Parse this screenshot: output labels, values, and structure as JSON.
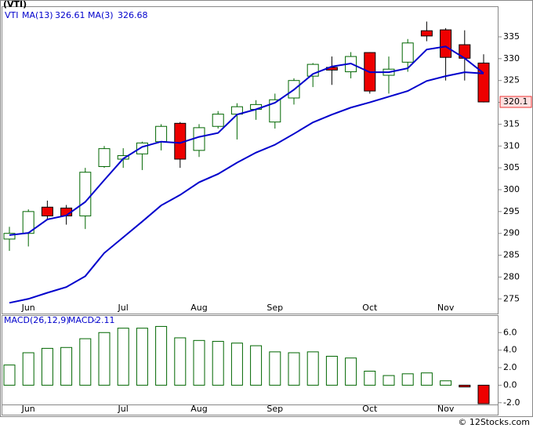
{
  "chart_data": [
    {
      "type": "candlestick",
      "title": "(VTI)",
      "name": "VTI",
      "categories": [
        null,
        "Jun",
        null,
        null,
        null,
        null,
        "Jul",
        null,
        null,
        null,
        "Aug",
        null,
        null,
        null,
        "Sep",
        null,
        null,
        null,
        null,
        "Oct",
        null,
        null,
        null,
        "Nov",
        null,
        null
      ],
      "open": [
        288.7,
        290,
        296,
        295.8,
        294,
        305.3,
        307,
        308.2,
        311,
        315.2,
        309,
        314.5,
        317.3,
        318.4,
        315.5,
        321,
        326,
        328,
        327,
        331.4,
        326.2,
        329.2,
        336.4,
        336.6,
        333.2,
        329
      ],
      "high": [
        291.5,
        295.5,
        297.5,
        296.5,
        305,
        310,
        309.5,
        311,
        315,
        315.5,
        315,
        318,
        319.8,
        320.5,
        322,
        325.5,
        329,
        330.5,
        331.5,
        331.5,
        330.5,
        334.5,
        338.5,
        337,
        336.5,
        331
      ],
      "low": [
        286,
        287,
        293,
        292,
        291,
        305,
        305,
        304.5,
        309,
        305,
        307.5,
        314,
        311.5,
        316,
        314,
        319.5,
        323.5,
        324,
        325.5,
        322,
        322,
        327,
        334,
        325,
        325,
        320
      ],
      "close": [
        290,
        295,
        294,
        294,
        304,
        309.4,
        307.8,
        310.7,
        314.5,
        307,
        314.2,
        317.3,
        319,
        319.5,
        320.6,
        325,
        328.7,
        327.4,
        330.5,
        322.6,
        327.6,
        333.6,
        335.2,
        330.3,
        330.1,
        320.1
      ],
      "up_color": "#006600",
      "down_color": "#ee0000",
      "series": [
        {
          "name": "MA(13)",
          "color": "#0000cc",
          "values": [
            274.1,
            275,
            276.4,
            277.7,
            280.2,
            285.5,
            289.1,
            292.7,
            296.4,
            298.8,
            301.7,
            303.6,
            306.2,
            308.5,
            310.3,
            312.8,
            315.4,
            317.2,
            318.8,
            320,
            321.3,
            322.6,
            324.9,
            326,
            326.9,
            326.61
          ]
        },
        {
          "name": "MA(3)",
          "color": "#0000cc",
          "values": [
            289.6,
            290.1,
            293.2,
            294.1,
            297.2,
            302.2,
            307.1,
            309.8,
            311,
            310.7,
            312.1,
            313,
            317.2,
            318.4,
            319.9,
            322.9,
            326.5,
            328.2,
            328.9,
            326.9,
            326.9,
            327.8,
            332.1,
            332.8,
            330.1,
            326.68
          ]
        }
      ],
      "ylim": [
        272,
        342
      ],
      "yticks": [
        275,
        280,
        285,
        290,
        295,
        300,
        305,
        310,
        315,
        320,
        325,
        330,
        335
      ]
    },
    {
      "type": "bar",
      "title": "MACD(26,12,9)",
      "legend_label": "MACD:",
      "categories": [
        null,
        "Jun",
        null,
        null,
        null,
        null,
        "Jul",
        null,
        null,
        null,
        "Aug",
        null,
        null,
        null,
        "Sep",
        null,
        null,
        null,
        null,
        "Oct",
        null,
        null,
        null,
        "Nov",
        null,
        null
      ],
      "values": [
        2.3,
        3.7,
        4.2,
        4.3,
        5.3,
        6.0,
        6.5,
        6.5,
        6.7,
        5.4,
        5.1,
        5.0,
        4.8,
        4.5,
        3.8,
        3.7,
        3.8,
        3.3,
        3.1,
        1.6,
        1.1,
        1.3,
        1.4,
        0.5,
        -0.2,
        -2.11
      ],
      "color": "#006600",
      "negative_color": "#ee0000",
      "ylim": [
        -2.2,
        7.9
      ],
      "yticks": [
        {
          "value": -2,
          "label": "-2.0"
        },
        {
          "value": 0,
          "label": "0.0"
        },
        {
          "value": 2,
          "label": "2.0"
        },
        {
          "value": 4,
          "label": "4.0"
        },
        {
          "value": 6,
          "label": "6.0"
        }
      ]
    }
  ],
  "source": "© 12Stocks.com"
}
